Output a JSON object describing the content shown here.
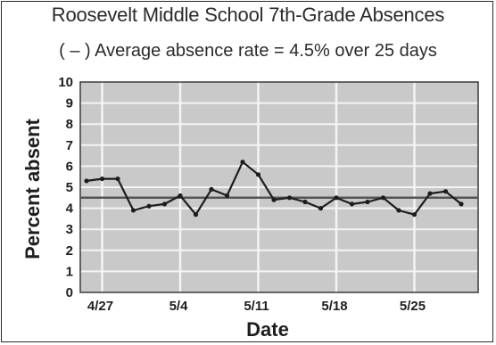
{
  "chart_data": {
    "type": "line",
    "title": "Roosevelt Middle School 7th-Grade Absences",
    "subtitle": "( – ) Average absence rate = 4.5% over 25 days",
    "xlabel": "Date",
    "ylabel": "Percent absent",
    "ylim": [
      0,
      10
    ],
    "yticks": [
      0,
      1,
      2,
      3,
      4,
      5,
      6,
      7,
      8,
      9,
      10
    ],
    "grid": true,
    "average_line": 4.5,
    "x_tick_labels": [
      {
        "label": "4/27",
        "index": 1
      },
      {
        "label": "5/4",
        "index": 6
      },
      {
        "label": "5/11",
        "index": 11
      },
      {
        "label": "5/18",
        "index": 16
      },
      {
        "label": "5/25",
        "index": 21
      }
    ],
    "series": [
      {
        "values": [
          5.3,
          5.4,
          5.4,
          3.9,
          4.1,
          4.2,
          4.6,
          3.7,
          4.9,
          4.6,
          6.2,
          5.6,
          4.4,
          4.5,
          4.3,
          4.0,
          4.5,
          4.2,
          4.3,
          4.5,
          3.9,
          3.7,
          4.7,
          4.8,
          4.2
        ]
      }
    ],
    "colors": {
      "plot_background": "#c9c9c9",
      "grid_line": "#f4f4f4",
      "data_line": "#1c1c1c",
      "average_line": "#555555"
    }
  }
}
